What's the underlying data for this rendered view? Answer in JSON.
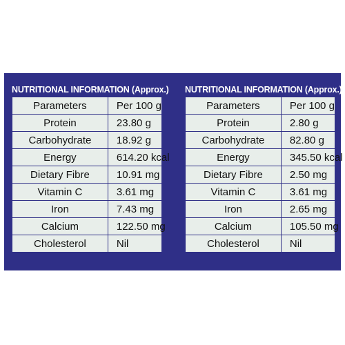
{
  "left_panel": {
    "title": "NUTRITIONAL INFORMATION (Approx.)",
    "header": [
      "Parameters",
      "Per 100 g"
    ],
    "rows": [
      [
        "Protein",
        "23.80 g"
      ],
      [
        "Carbohydrate",
        "18.92 g"
      ],
      [
        "Energy",
        "614.20 kcal"
      ],
      [
        "Dietary Fibre",
        "10.91 mg"
      ],
      [
        "Vitamin C",
        "3.61 mg"
      ],
      [
        "Iron",
        "7.43 mg"
      ],
      [
        "Calcium",
        "122.50 mg"
      ],
      [
        "Cholesterol",
        "Nil"
      ]
    ]
  },
  "right_panel": {
    "title": "NUTRITIONAL INFORMATION (Approx.)",
    "header": [
      "Parameters",
      "Per 100 g"
    ],
    "rows": [
      [
        "Protein",
        "2.80 g"
      ],
      [
        "Carbohydrate",
        "82.80 g"
      ],
      [
        "Energy",
        "345.50 kcal"
      ],
      [
        "Dietary Fibre",
        "2.50 mg"
      ],
      [
        "Vitamin C",
        "3.61 mg"
      ],
      [
        "Iron",
        "2.65 mg"
      ],
      [
        "Calcium",
        "105.50 mg"
      ],
      [
        "Cholesterol",
        "Nil"
      ]
    ]
  },
  "colors": {
    "panel_background": "#2f2f87",
    "table_background": "#e8eeea",
    "title_text": "#ffffff"
  }
}
